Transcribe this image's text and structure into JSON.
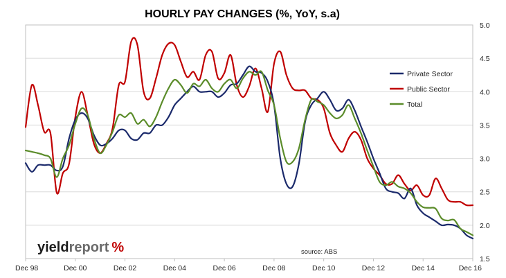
{
  "chart_data": {
    "type": "line",
    "title": "HOURLY PAY CHANGES (%, YoY, s.a)",
    "xlabel": "",
    "ylabel": "",
    "x_tick_labels": [
      "Dec 98",
      "Dec 00",
      "Dec 02",
      "Dec 04",
      "Dec 06",
      "Dec 08",
      "Dec 10",
      "Dec 12",
      "Dec 14",
      "Dec 16"
    ],
    "xlim": [
      1998.92,
      2016.92
    ],
    "y_axis_position": "right",
    "ylim": [
      1.5,
      5.0
    ],
    "y_ticks": [
      "5.0",
      "4.5",
      "4.0",
      "3.5",
      "3.0",
      "2.5",
      "2.0",
      "1.5"
    ],
    "y_tick_values": [
      5.0,
      4.5,
      4.0,
      3.5,
      3.0,
      2.5,
      2.0,
      1.5
    ],
    "grid": "horizontal",
    "legend_position": "right",
    "series": [
      {
        "name": "Private Sector",
        "color": "#1b2a6b",
        "points": [
          [
            1998.92,
            2.93
          ],
          [
            1999.17,
            2.8
          ],
          [
            1999.42,
            2.9
          ],
          [
            1999.67,
            2.9
          ],
          [
            1999.92,
            2.9
          ],
          [
            2000.17,
            2.82
          ],
          [
            2000.42,
            2.88
          ],
          [
            2000.67,
            3.3
          ],
          [
            2000.92,
            3.58
          ],
          [
            2001.17,
            3.68
          ],
          [
            2001.42,
            3.6
          ],
          [
            2001.67,
            3.35
          ],
          [
            2001.92,
            3.2
          ],
          [
            2002.17,
            3.22
          ],
          [
            2002.42,
            3.3
          ],
          [
            2002.67,
            3.42
          ],
          [
            2002.92,
            3.42
          ],
          [
            2003.17,
            3.3
          ],
          [
            2003.42,
            3.28
          ],
          [
            2003.67,
            3.38
          ],
          [
            2003.92,
            3.38
          ],
          [
            2004.17,
            3.5
          ],
          [
            2004.42,
            3.5
          ],
          [
            2004.67,
            3.62
          ],
          [
            2004.92,
            3.8
          ],
          [
            2005.17,
            3.9
          ],
          [
            2005.42,
            4.0
          ],
          [
            2005.67,
            4.08
          ],
          [
            2005.92,
            4.0
          ],
          [
            2006.17,
            4.0
          ],
          [
            2006.42,
            4.0
          ],
          [
            2006.67,
            3.92
          ],
          [
            2006.92,
            3.98
          ],
          [
            2007.17,
            4.1
          ],
          [
            2007.42,
            4.12
          ],
          [
            2007.67,
            4.25
          ],
          [
            2007.92,
            4.38
          ],
          [
            2008.17,
            4.3
          ],
          [
            2008.42,
            4.28
          ],
          [
            2008.67,
            4.15
          ],
          [
            2008.92,
            3.8
          ],
          [
            2009.17,
            3.0
          ],
          [
            2009.42,
            2.62
          ],
          [
            2009.67,
            2.58
          ],
          [
            2009.92,
            2.92
          ],
          [
            2010.17,
            3.55
          ],
          [
            2010.42,
            3.8
          ],
          [
            2010.67,
            3.9
          ],
          [
            2010.92,
            4.0
          ],
          [
            2011.17,
            3.88
          ],
          [
            2011.42,
            3.72
          ],
          [
            2011.67,
            3.75
          ],
          [
            2011.92,
            3.88
          ],
          [
            2012.17,
            3.72
          ],
          [
            2012.42,
            3.48
          ],
          [
            2012.67,
            3.25
          ],
          [
            2012.92,
            3.0
          ],
          [
            2013.17,
            2.78
          ],
          [
            2013.42,
            2.55
          ],
          [
            2013.67,
            2.5
          ],
          [
            2013.92,
            2.48
          ],
          [
            2014.17,
            2.4
          ],
          [
            2014.42,
            2.55
          ],
          [
            2014.67,
            2.3
          ],
          [
            2014.92,
            2.18
          ],
          [
            2015.17,
            2.12
          ],
          [
            2015.42,
            2.06
          ],
          [
            2015.67,
            2.0
          ],
          [
            2015.92,
            2.01
          ],
          [
            2016.17,
            2.0
          ],
          [
            2016.42,
            1.95
          ],
          [
            2016.67,
            1.85
          ],
          [
            2016.92,
            1.8
          ]
        ]
      },
      {
        "name": "Public Sector",
        "color": "#c00000",
        "points": [
          [
            1998.92,
            3.47
          ],
          [
            1999.17,
            4.1
          ],
          [
            1999.42,
            3.8
          ],
          [
            1999.67,
            3.4
          ],
          [
            1999.92,
            3.38
          ],
          [
            2000.17,
            2.49
          ],
          [
            2000.42,
            2.78
          ],
          [
            2000.67,
            2.92
          ],
          [
            2000.92,
            3.62
          ],
          [
            2001.17,
            4.0
          ],
          [
            2001.42,
            3.65
          ],
          [
            2001.67,
            3.22
          ],
          [
            2001.92,
            3.08
          ],
          [
            2002.17,
            3.22
          ],
          [
            2002.42,
            3.45
          ],
          [
            2002.67,
            4.1
          ],
          [
            2002.92,
            4.15
          ],
          [
            2003.17,
            4.75
          ],
          [
            2003.42,
            4.7
          ],
          [
            2003.67,
            4.0
          ],
          [
            2003.92,
            3.9
          ],
          [
            2004.17,
            4.2
          ],
          [
            2004.42,
            4.55
          ],
          [
            2004.67,
            4.72
          ],
          [
            2004.92,
            4.7
          ],
          [
            2005.17,
            4.45
          ],
          [
            2005.42,
            4.22
          ],
          [
            2005.67,
            4.3
          ],
          [
            2005.92,
            4.18
          ],
          [
            2006.17,
            4.55
          ],
          [
            2006.42,
            4.6
          ],
          [
            2006.67,
            4.2
          ],
          [
            2006.92,
            4.28
          ],
          [
            2007.17,
            4.55
          ],
          [
            2007.42,
            4.1
          ],
          [
            2007.67,
            3.92
          ],
          [
            2007.92,
            4.08
          ],
          [
            2008.17,
            4.35
          ],
          [
            2008.42,
            4.05
          ],
          [
            2008.67,
            3.7
          ],
          [
            2008.92,
            4.42
          ],
          [
            2009.17,
            4.6
          ],
          [
            2009.42,
            4.25
          ],
          [
            2009.67,
            4.05
          ],
          [
            2009.92,
            4.02
          ],
          [
            2010.17,
            4.02
          ],
          [
            2010.42,
            3.9
          ],
          [
            2010.67,
            3.88
          ],
          [
            2010.92,
            3.75
          ],
          [
            2011.17,
            3.38
          ],
          [
            2011.42,
            3.2
          ],
          [
            2011.67,
            3.1
          ],
          [
            2011.92,
            3.3
          ],
          [
            2012.17,
            3.4
          ],
          [
            2012.42,
            3.28
          ],
          [
            2012.67,
            3.0
          ],
          [
            2012.92,
            2.85
          ],
          [
            2013.17,
            2.75
          ],
          [
            2013.42,
            2.62
          ],
          [
            2013.67,
            2.62
          ],
          [
            2013.92,
            2.75
          ],
          [
            2014.17,
            2.62
          ],
          [
            2014.42,
            2.52
          ],
          [
            2014.67,
            2.6
          ],
          [
            2014.92,
            2.45
          ],
          [
            2015.17,
            2.45
          ],
          [
            2015.42,
            2.7
          ],
          [
            2015.67,
            2.55
          ],
          [
            2015.92,
            2.38
          ],
          [
            2016.17,
            2.35
          ],
          [
            2016.42,
            2.35
          ],
          [
            2016.67,
            2.3
          ],
          [
            2016.92,
            2.3
          ]
        ]
      },
      {
        "name": "Total",
        "color": "#5b8c2a",
        "points": [
          [
            1998.92,
            3.12
          ],
          [
            1999.17,
            3.1
          ],
          [
            1999.42,
            3.08
          ],
          [
            1999.67,
            3.05
          ],
          [
            1999.92,
            3.0
          ],
          [
            2000.17,
            2.72
          ],
          [
            2000.42,
            3.0
          ],
          [
            2000.67,
            3.2
          ],
          [
            2000.92,
            3.52
          ],
          [
            2001.17,
            3.75
          ],
          [
            2001.42,
            3.65
          ],
          [
            2001.67,
            3.3
          ],
          [
            2001.92,
            3.08
          ],
          [
            2002.17,
            3.2
          ],
          [
            2002.42,
            3.4
          ],
          [
            2002.67,
            3.65
          ],
          [
            2002.92,
            3.62
          ],
          [
            2003.17,
            3.68
          ],
          [
            2003.42,
            3.52
          ],
          [
            2003.67,
            3.58
          ],
          [
            2003.92,
            3.48
          ],
          [
            2004.17,
            3.62
          ],
          [
            2004.42,
            3.85
          ],
          [
            2004.67,
            4.05
          ],
          [
            2004.92,
            4.18
          ],
          [
            2005.17,
            4.1
          ],
          [
            2005.42,
            3.98
          ],
          [
            2005.67,
            4.12
          ],
          [
            2005.92,
            4.08
          ],
          [
            2006.17,
            4.18
          ],
          [
            2006.42,
            4.05
          ],
          [
            2006.67,
            4.0
          ],
          [
            2006.92,
            4.12
          ],
          [
            2007.17,
            4.18
          ],
          [
            2007.42,
            4.05
          ],
          [
            2007.67,
            4.2
          ],
          [
            2007.92,
            4.3
          ],
          [
            2008.17,
            4.25
          ],
          [
            2008.42,
            4.3
          ],
          [
            2008.67,
            4.02
          ],
          [
            2008.92,
            3.8
          ],
          [
            2009.17,
            3.3
          ],
          [
            2009.42,
            2.95
          ],
          [
            2009.67,
            2.95
          ],
          [
            2009.92,
            3.15
          ],
          [
            2010.17,
            3.58
          ],
          [
            2010.42,
            3.88
          ],
          [
            2010.67,
            3.85
          ],
          [
            2010.92,
            3.8
          ],
          [
            2011.17,
            3.68
          ],
          [
            2011.42,
            3.6
          ],
          [
            2011.67,
            3.65
          ],
          [
            2011.92,
            3.8
          ],
          [
            2012.17,
            3.6
          ],
          [
            2012.42,
            3.38
          ],
          [
            2012.67,
            3.12
          ],
          [
            2012.92,
            2.88
          ],
          [
            2013.17,
            2.65
          ],
          [
            2013.42,
            2.6
          ],
          [
            2013.67,
            2.65
          ],
          [
            2013.92,
            2.58
          ],
          [
            2014.17,
            2.55
          ],
          [
            2014.42,
            2.48
          ],
          [
            2014.67,
            2.35
          ],
          [
            2014.92,
            2.27
          ],
          [
            2015.17,
            2.26
          ],
          [
            2015.42,
            2.25
          ],
          [
            2015.67,
            2.1
          ],
          [
            2015.92,
            2.07
          ],
          [
            2016.17,
            2.08
          ],
          [
            2016.42,
            1.95
          ],
          [
            2016.67,
            1.9
          ],
          [
            2016.92,
            1.85
          ]
        ]
      }
    ]
  },
  "source_note": "source: ABS",
  "logo": {
    "text_dark": "yield",
    "text_light": "report",
    "symbol": "%",
    "color_dark": "#1c1c1c",
    "color_light": "#6a6a6a",
    "color_symbol": "#c00000"
  }
}
